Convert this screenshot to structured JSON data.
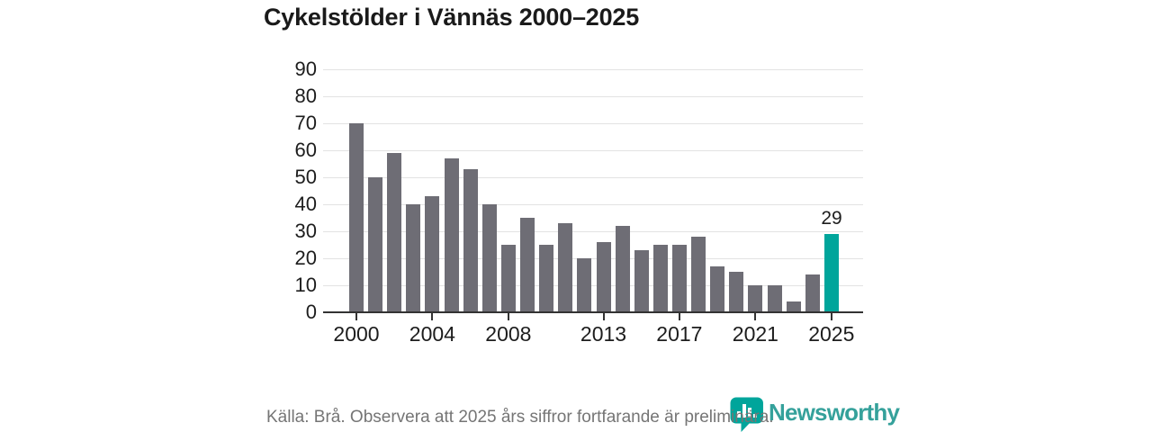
{
  "title": "Cykelstölder i Vännäs 2000–2025",
  "chart_data": {
    "type": "bar",
    "title": "Cykelstölder i Vännäs 2000–2025",
    "x": [
      2000,
      2001,
      2002,
      2003,
      2004,
      2005,
      2006,
      2007,
      2008,
      2009,
      2010,
      2011,
      2012,
      2013,
      2014,
      2015,
      2016,
      2017,
      2018,
      2019,
      2020,
      2021,
      2022,
      2023,
      2024,
      2025
    ],
    "values": [
      70,
      50,
      59,
      40,
      43,
      57,
      53,
      40,
      25,
      35,
      25,
      33,
      20,
      26,
      32,
      23,
      25,
      25,
      28,
      17,
      15,
      10,
      10,
      4,
      14,
      29
    ],
    "x_tick_labels": [
      "2000",
      "2004",
      "2008",
      "2013",
      "2017",
      "2021",
      "2025"
    ],
    "y_ticks": [
      0,
      10,
      20,
      30,
      40,
      50,
      60,
      70,
      80,
      90
    ],
    "ylim": [
      0,
      90
    ],
    "grid": "horizontal",
    "legend": "none",
    "bar_color": "#6e6d75",
    "highlight_year": 2025,
    "highlight_color": "#00a59b",
    "highlight_value_label": "29"
  },
  "footer": {
    "source_text": "Källa: Brå. Observera att 2025 års siffror fortfarande är preliminära."
  },
  "logo": {
    "icon": "newsworthy-bubble-barchart-icon",
    "icon_color": "#00a59b",
    "wordmark": "Newsworthy",
    "wordmark_color": "#35a19b"
  }
}
